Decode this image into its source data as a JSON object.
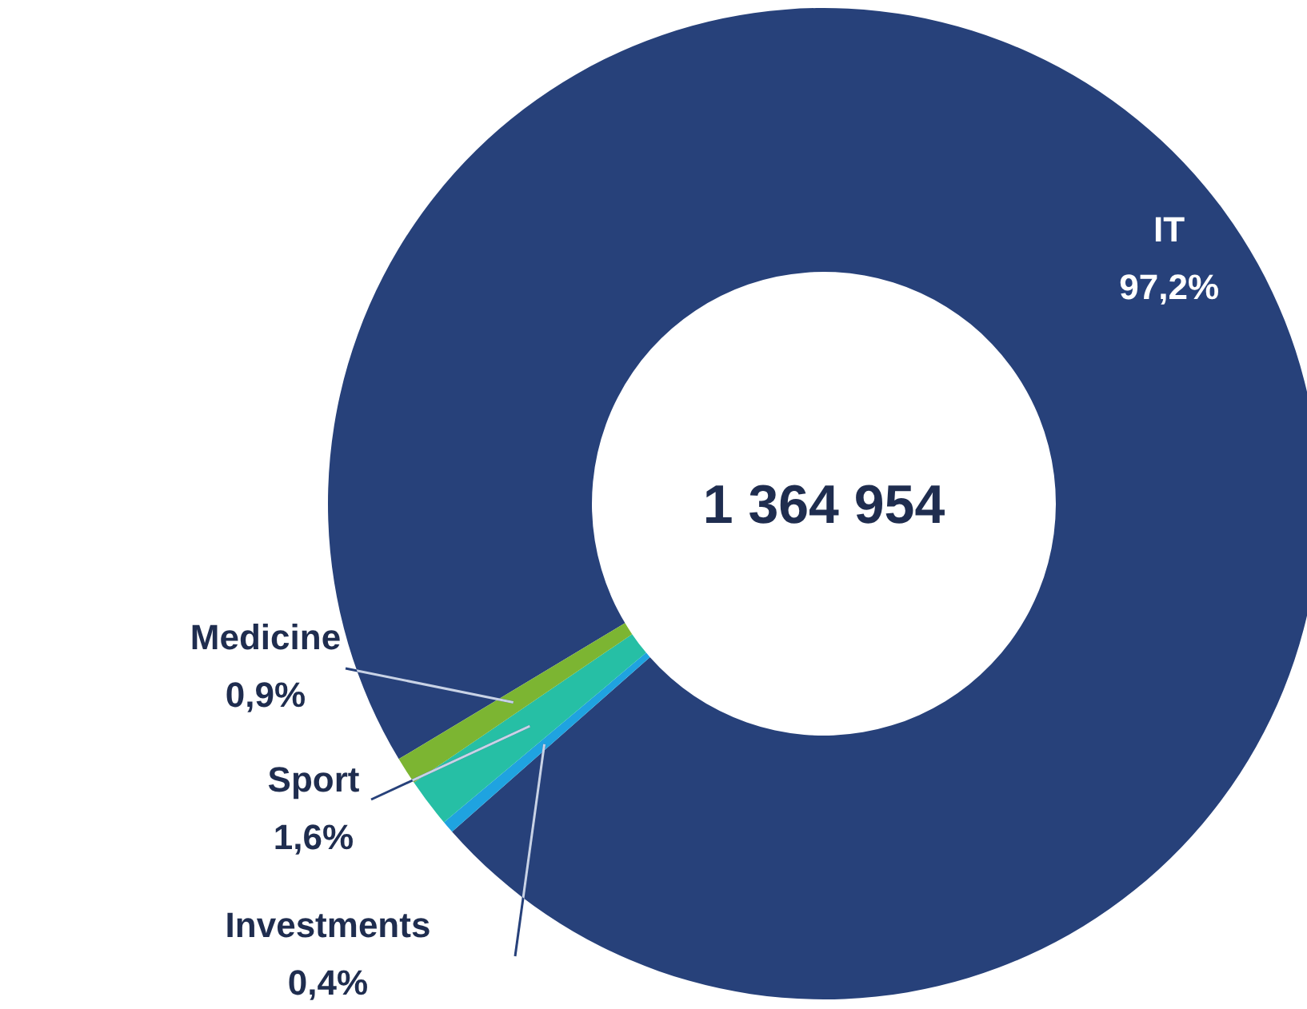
{
  "chart_data": {
    "type": "donut",
    "categories": [
      "IT",
      "Investments",
      "Sport",
      "Medicine"
    ],
    "values": [
      97.2,
      0.4,
      1.6,
      0.9
    ],
    "colors": [
      "#27417a",
      "#1fa3e0",
      "#26bfa5",
      "#7cb532"
    ],
    "value_labels": [
      "97,2%",
      "0,4%",
      "1,6%",
      "0,9%"
    ],
    "annotations": [
      "1 364 954"
    ]
  }
}
